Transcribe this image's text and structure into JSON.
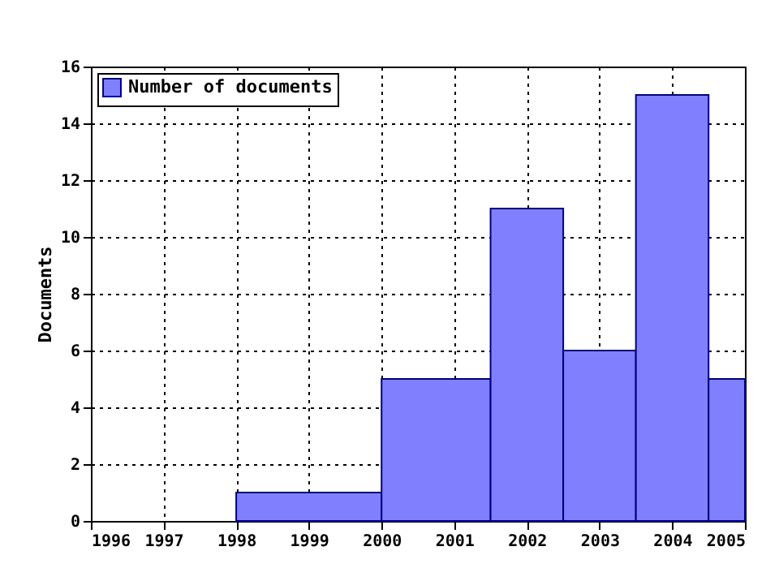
{
  "chart_data": {
    "type": "histogram",
    "ylabel": "Documents",
    "bins": [
      1998,
      2000,
      2001.5,
      2002.5,
      2003.5,
      2004.5,
      2005
    ],
    "series": [
      {
        "name": "Number of documents",
        "color": "#8080ff",
        "values": [
          1,
          5,
          11,
          6,
          15,
          5
        ]
      }
    ],
    "xlim": [
      1996,
      2005
    ],
    "xticks": [
      1996,
      1997,
      1998,
      1999,
      2000,
      2001,
      2002,
      2003,
      2004,
      2005
    ],
    "ylim": [
      0,
      16
    ],
    "yticks": [
      0,
      2,
      4,
      6,
      8,
      10,
      12,
      14,
      16
    ],
    "grid": true,
    "legend": "top left"
  }
}
